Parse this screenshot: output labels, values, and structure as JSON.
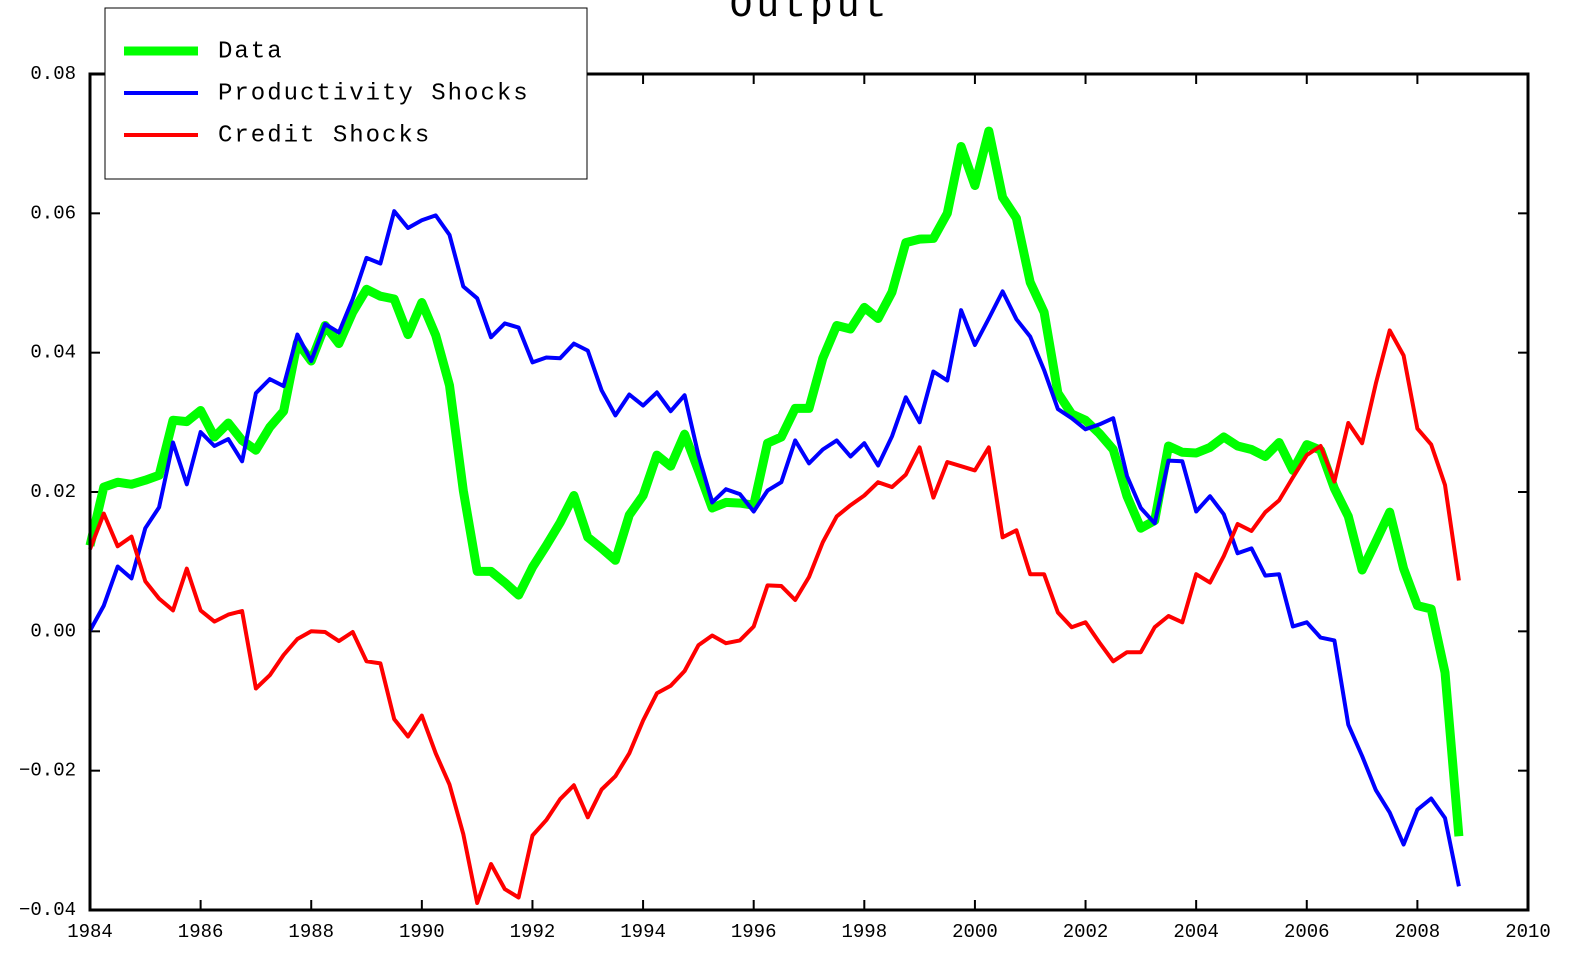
{
  "chart_data": {
    "type": "line",
    "title": "Output",
    "x": [
      1984,
      1984.25,
      1984.5,
      1984.75,
      1985,
      1985.25,
      1985.5,
      1985.75,
      1986,
      1986.25,
      1986.5,
      1986.75,
      1987,
      1987.25,
      1987.5,
      1987.75,
      1988,
      1988.25,
      1988.5,
      1988.75,
      1989,
      1989.25,
      1989.5,
      1989.75,
      1990,
      1990.25,
      1990.5,
      1990.75,
      1991,
      1991.25,
      1991.5,
      1991.75,
      1992,
      1992.25,
      1992.5,
      1992.75,
      1993,
      1993.25,
      1993.5,
      1993.75,
      1994,
      1994.25,
      1994.5,
      1994.75,
      1995,
      1995.25,
      1995.5,
      1995.75,
      1996,
      1996.25,
      1996.5,
      1996.75,
      1997,
      1997.25,
      1997.5,
      1997.75,
      1998,
      1998.25,
      1998.5,
      1998.75,
      1999,
      1999.25,
      1999.5,
      1999.75,
      2000,
      2000.25,
      2000.5,
      2000.75,
      2001,
      2001.25,
      2001.5,
      2001.75,
      2002,
      2002.25,
      2002.5,
      2002.75,
      2003,
      2003.25,
      2003.5,
      2003.75,
      2004,
      2004.25,
      2004.5,
      2004.75,
      2005,
      2005.25,
      2005.5,
      2005.75,
      2006,
      2006.25,
      2006.5,
      2006.75,
      2007,
      2007.25,
      2007.5,
      2007.75,
      2008,
      2008.25,
      2008.5,
      2008.75
    ],
    "series": [
      {
        "name": "Data",
        "color": "#00ff00",
        "width": 9,
        "values": [
          0.0123,
          0.0207,
          0.0214,
          0.0211,
          0.0217,
          0.0224,
          0.0303,
          0.0301,
          0.0317,
          0.0279,
          0.0299,
          0.0274,
          0.026,
          0.0293,
          0.0316,
          0.0415,
          0.0388,
          0.0439,
          0.0413,
          0.0458,
          0.0491,
          0.0481,
          0.0477,
          0.0426,
          0.0472,
          0.0425,
          0.0353,
          0.0202,
          0.0086,
          0.0086,
          0.007,
          0.0052,
          0.0092,
          0.0123,
          0.0156,
          0.0195,
          0.0135,
          0.0119,
          0.0102,
          0.0167,
          0.0195,
          0.0253,
          0.0237,
          0.0283,
          0.0231,
          0.0177,
          0.0185,
          0.0184,
          0.0181,
          0.027,
          0.0279,
          0.032,
          0.032,
          0.0392,
          0.0439,
          0.0434,
          0.0465,
          0.0449,
          0.0487,
          0.0558,
          0.0563,
          0.0564,
          0.06,
          0.0696,
          0.064,
          0.0718,
          0.0623,
          0.0593,
          0.0501,
          0.0458,
          0.0342,
          0.0312,
          0.0303,
          0.0284,
          0.0261,
          0.0194,
          0.0148,
          0.0159,
          0.0266,
          0.0257,
          0.0256,
          0.0264,
          0.0279,
          0.0266,
          0.0261,
          0.0251,
          0.0271,
          0.0231,
          0.0268,
          0.026,
          0.0205,
          0.0165,
          0.0088,
          0.0129,
          0.0171,
          0.009,
          0.0037,
          0.0032,
          -0.0059,
          -0.0294
        ]
      },
      {
        "name": "Productivity Shocks",
        "color": "#0000ff",
        "width": 4,
        "values": [
          0.0001,
          0.0037,
          0.0093,
          0.0076,
          0.0148,
          0.0178,
          0.0271,
          0.0211,
          0.0286,
          0.0266,
          0.0276,
          0.0244,
          0.0342,
          0.0362,
          0.0352,
          0.0426,
          0.0388,
          0.0441,
          0.0429,
          0.0477,
          0.0536,
          0.0528,
          0.0603,
          0.0579,
          0.059,
          0.0597,
          0.0569,
          0.0495,
          0.0478,
          0.0422,
          0.0442,
          0.0436,
          0.0386,
          0.0393,
          0.0392,
          0.0413,
          0.0403,
          0.0346,
          0.031,
          0.034,
          0.0324,
          0.0343,
          0.0316,
          0.0339,
          0.0253,
          0.0185,
          0.0204,
          0.0197,
          0.0172,
          0.0202,
          0.0214,
          0.0274,
          0.0241,
          0.0261,
          0.0274,
          0.0251,
          0.027,
          0.0238,
          0.028,
          0.0336,
          0.03,
          0.0373,
          0.036,
          0.0461,
          0.0411,
          0.0449,
          0.0488,
          0.0448,
          0.0423,
          0.0375,
          0.0319,
          0.0306,
          0.029,
          0.0297,
          0.0306,
          0.0223,
          0.0177,
          0.0155,
          0.0245,
          0.0244,
          0.0172,
          0.0194,
          0.0168,
          0.0112,
          0.0119,
          0.008,
          0.0082,
          0.0007,
          0.0013,
          -0.0009,
          -0.0013,
          -0.0134,
          -0.0179,
          -0.0228,
          -0.026,
          -0.0306,
          -0.0256,
          -0.024,
          -0.0268,
          -0.0366
        ]
      },
      {
        "name": "Credit Shocks",
        "color": "#ff0000",
        "width": 4,
        "values": [
          0.0118,
          0.0169,
          0.0122,
          0.0136,
          0.0072,
          0.0047,
          0.003,
          0.009,
          0.003,
          0.0014,
          0.0024,
          0.0029,
          -0.0082,
          -0.0063,
          -0.0034,
          -0.0011,
          0.0,
          -0.0001,
          -0.0014,
          -0.0001,
          -0.0043,
          -0.0046,
          -0.0126,
          -0.0151,
          -0.0121,
          -0.0175,
          -0.022,
          -0.0291,
          -0.039,
          -0.0334,
          -0.037,
          -0.0382,
          -0.0293,
          -0.0271,
          -0.0241,
          -0.0221,
          -0.0267,
          -0.0227,
          -0.0208,
          -0.0175,
          -0.0128,
          -0.0089,
          -0.0078,
          -0.0057,
          -0.002,
          -0.0006,
          -0.0017,
          -0.0013,
          0.0007,
          0.0066,
          0.0065,
          0.0045,
          0.0078,
          0.0128,
          0.0165,
          0.0181,
          0.0195,
          0.0214,
          0.0207,
          0.0225,
          0.0264,
          0.0192,
          0.0243,
          0.0237,
          0.0231,
          0.0264,
          0.0135,
          0.0145,
          0.0082,
          0.0082,
          0.0027,
          0.0006,
          0.0013,
          -0.0016,
          -0.0043,
          -0.003,
          -0.003,
          0.0006,
          0.0022,
          0.0013,
          0.0082,
          0.007,
          0.0108,
          0.0154,
          0.0144,
          0.0171,
          0.0188,
          0.0221,
          0.0253,
          0.0266,
          0.0215,
          0.0299,
          0.027,
          0.0356,
          0.0432,
          0.0396,
          0.0291,
          0.0268,
          0.021,
          0.0073
        ]
      }
    ],
    "xlim": [
      1984,
      2010
    ],
    "xticks": [
      1984,
      1986,
      1988,
      1990,
      1992,
      1994,
      1996,
      1998,
      2000,
      2002,
      2004,
      2006,
      2008,
      2010
    ],
    "ylim": [
      -0.04,
      0.08
    ],
    "yticks": [
      {
        "value": -0.04,
        "label": "−0.04"
      },
      {
        "value": -0.02,
        "label": "−0.02"
      },
      {
        "value": 0,
        "label": "0.00"
      },
      0.02,
      0.04,
      0.06,
      0.08
    ],
    "grid": false,
    "legend": "upper-left"
  }
}
